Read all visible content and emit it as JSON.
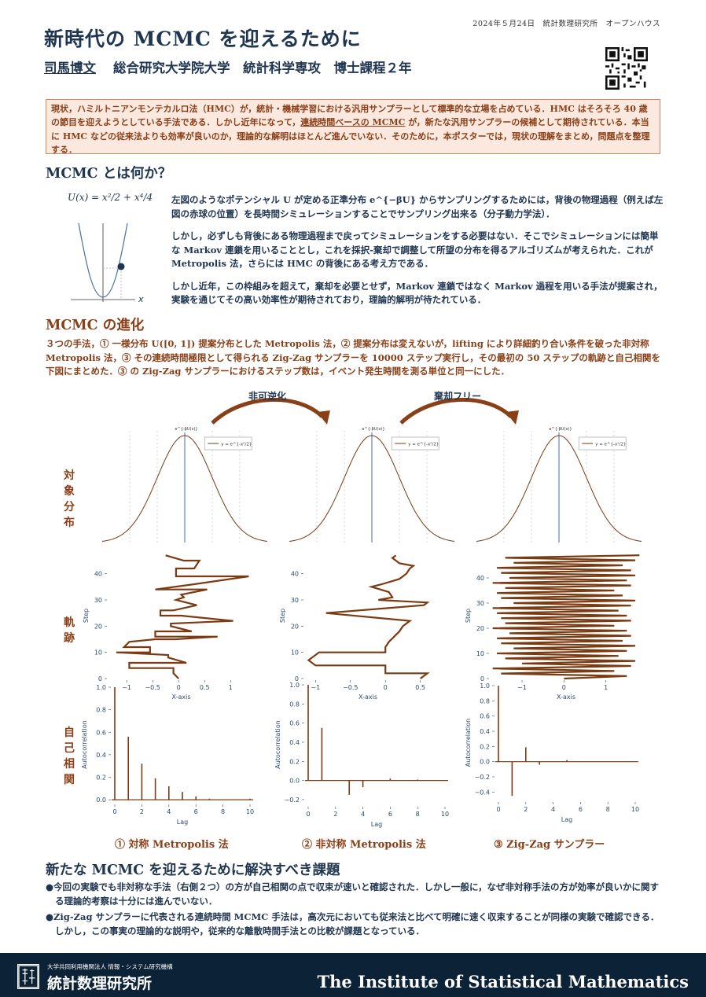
{
  "header": {
    "meta": "2024年５月24日　統計数理研究所　オープンハウス",
    "title": "新時代の MCMC を迎えるために",
    "author": "司馬博文",
    "affiliation": "総合研究大学院大学　統計科学専攻　博士課程２年"
  },
  "intro": {
    "part1": "現状，ハミルトニアンモンテカルロ法（HMC）が，統計・機械学習における汎用サンプラーとして標準的な立場を占めている．HMC はそろそろ 40 歳の節目を迎えようとしている手法である．しかし近年になって，",
    "highlight": "連続時間ベースの MCMC",
    "part2": " が，新たな汎用サンプラーの候補として期待されている．本当に HMC などの従来法よりも効率が良いのか，理論的な解明はほとんど進んでいない．そのために，本ポスターでは，現状の理解をまとめ，問題点を整理する．"
  },
  "section1": {
    "title": "MCMC とは何か？",
    "formula": "U(x) = x²/2 + x⁴/4",
    "axis_x": "x",
    "p1": "左図のようなポテンシャル U が定める正準分布 e^{−βU} からサンプリングするためには，背後の物理過程（例えば左図の赤球の位置）を長時間シミュレーションすることでサンプリング出来る（分子動力学法）．",
    "p2": "しかし，必ずしも背後にある物理過程まで戻ってシミュレーションをする必要はない．そこでシミュレーションには簡単な Markov 連鎖を用いることとし，これを採択-棄却で調整して所望の分布を得るアルゴリズムが考えられた．これが Metropolis 法，さらには HMC の背後にある考え方である．",
    "p3": "しかし近年，この枠組みを超えて，棄却を必要とせず，Markov 連鎖ではなく Markov 過程を用いる手法が提案され，実験を通じてその高い効率性が期待されており，理論的解明が待たれている．"
  },
  "section2": {
    "title": "MCMC の進化",
    "text": "３つの手法，① 一様分布 U([0, 1]) 提案分布とした Metropolis 法，② 提案分布は変えないが，lifting により詳細釣り合い条件を破った非対称 Metropolis 法，③ その連続時間極限として得られる Zig-Zag サンプラーを 10000 ステップ実行し，その最初の 50 ステップの軌跡と自己相関を下図にまとめた．③ の Zig-Zag サンプラーにおけるステップ数は，イベント発生時間を測る単位と同一にした．",
    "arrow1": "非可逆化",
    "arrow2": "棄却フリー",
    "row_labels": {
      "target": "対象分布",
      "trajectory": "軌跡",
      "acf": "自己相関"
    },
    "captions": [
      "① 対称 Metropolis 法",
      "② 非対称 Metropolis 法",
      "③ Zig-Zag サンプラー"
    ]
  },
  "section3": {
    "title": "新たな MCMC を迎えるために解決すべき課題",
    "items": [
      "●今回の実験でも非対称な手法（右側２つ）の方が自己相関の点で収束が速いと確認された．しかし一般に，なぜ非対称手法の方が効率が良いかに関する理論的考察は十分には進んでいない．",
      "●Zig-Zag サンプラーに代表される連続時間 MCMC 手法は，高次元においても従来法と比べて明確に速く収束することが同様の実験で確認できる．しかし，この事実の理論的な説明や，従来的な離散時間手法との比較が課題となっている．"
    ]
  },
  "footer": {
    "org": "大学共同利用機関法人 情報・システム研究機構",
    "name": "統計数理研究所",
    "english": "The Institute of Statistical Mathematics"
  },
  "colors": {
    "navy": "#1f3550",
    "brown": "#8a3f17",
    "line_brown": "#7a3b12",
    "blue_line": "#4a6fa5",
    "footer_bg": "#0c2236"
  },
  "chart_data": [
    {
      "type": "line",
      "panel": "target-1",
      "title": "e^{-βU(x)}",
      "legend": "y = e^{-x²/2}",
      "x": [
        -3,
        -2.5,
        -2,
        -1.5,
        -1,
        -0.5,
        0,
        0.5,
        1,
        1.5,
        2,
        2.5,
        3
      ],
      "y": [
        0.011,
        0.044,
        0.135,
        0.325,
        0.607,
        0.882,
        1.0,
        0.882,
        0.607,
        0.325,
        0.135,
        0.044,
        0.011
      ]
    },
    {
      "type": "line",
      "panel": "target-2",
      "title": "e^{-βU(x)}",
      "legend": "y = e^{-x²/2}",
      "x": [
        -3,
        -2.5,
        -2,
        -1.5,
        -1,
        -0.5,
        0,
        0.5,
        1,
        1.5,
        2,
        2.5,
        3
      ],
      "y": [
        0.011,
        0.044,
        0.135,
        0.325,
        0.607,
        0.882,
        1.0,
        0.882,
        0.607,
        0.325,
        0.135,
        0.044,
        0.011
      ]
    },
    {
      "type": "line",
      "panel": "target-3",
      "title": "e^{-βU(x)}",
      "legend": "y = e^{-x²/2}",
      "x": [
        -3,
        -2.5,
        -2,
        -1.5,
        -1,
        -0.5,
        0,
        0.5,
        1,
        1.5,
        2,
        2.5,
        3
      ],
      "y": [
        0.011,
        0.044,
        0.135,
        0.325,
        0.607,
        0.882,
        1.0,
        0.882,
        0.607,
        0.325,
        0.135,
        0.044,
        0.011
      ]
    },
    {
      "type": "line",
      "panel": "trajectory-1",
      "xlabel": "X-axis",
      "ylabel": "Step",
      "xlim": [
        -1.35,
        1.45
      ],
      "ylim": [
        0,
        48
      ],
      "xticks": [
        -1.0,
        -0.5,
        0.0,
        0.5,
        1.0
      ],
      "yticks": [
        0,
        10,
        20,
        30,
        40
      ],
      "x": [
        0.0,
        -0.1,
        -0.1,
        -0.95,
        -0.95,
        0.15,
        -0.2,
        -0.2,
        -1.2,
        -0.55,
        -0.55,
        -1.05,
        -0.95,
        -0.45,
        -0.05,
        0.75,
        -0.45,
        -0.45,
        0.25,
        -0.15,
        -0.15,
        1.05,
        0.05,
        -0.35,
        -0.35,
        -0.1,
        0.35,
        -0.05,
        0.1,
        0.05,
        0.55,
        -0.45,
        0.3,
        1.35,
        -0.05,
        -0.05,
        0.3,
        0.4,
        0.1,
        -0.25
      ],
      "y": [
        0,
        2,
        4,
        4,
        6,
        6,
        8,
        9,
        10,
        10,
        12,
        12,
        14,
        15,
        15,
        16,
        16,
        18,
        18,
        20,
        21,
        22,
        24,
        24,
        26,
        26,
        28,
        30,
        31,
        32,
        34,
        34,
        36,
        39,
        39,
        42,
        42,
        45,
        45,
        47
      ]
    },
    {
      "type": "line",
      "panel": "trajectory-2",
      "xlabel": "X-axis",
      "ylabel": "Step",
      "xlim": [
        -1.15,
        0.65
      ],
      "ylim": [
        0,
        48
      ],
      "xticks": [
        -1.0,
        -0.5,
        0.0,
        0.5
      ],
      "yticks": [
        0,
        10,
        20,
        30,
        40
      ],
      "x": [
        0.5,
        0.6,
        0.0,
        0.0,
        -1.0,
        -1.1,
        -0.95,
        0.0,
        0.0,
        0.05,
        0.2,
        0.25,
        0.35,
        -0.85,
        0.55,
        0.6,
        -0.1,
        0.1,
        0.05,
        -0.2,
        -0.05,
        0.2,
        0.3,
        0.35,
        0.4,
        0.2,
        0.1,
        0.15
      ],
      "y": [
        0,
        2,
        2,
        5,
        5,
        7,
        10,
        10,
        12,
        14,
        18,
        20,
        22,
        25,
        28,
        29,
        30,
        31,
        33,
        35,
        36,
        38,
        40,
        42,
        43,
        44,
        46,
        47
      ]
    },
    {
      "type": "line",
      "panel": "trajectory-3",
      "xlabel": "X-axis",
      "ylabel": "Step",
      "xlim": [
        -1.75,
        1.85
      ],
      "ylim": [
        0,
        50
      ],
      "xticks": [
        -1,
        0,
        1
      ],
      "yticks": [
        0,
        10,
        20,
        30,
        40
      ],
      "x": [
        0.0,
        1.5,
        -1.5,
        1.2,
        -1.7,
        1.6,
        -1.0,
        1.7,
        -1.4,
        1.3,
        -1.6,
        1.5,
        -1.2,
        1.7,
        -1.5,
        1.4,
        -1.6,
        1.6,
        -1.3,
        1.5,
        -1.7,
        1.2,
        -1.4,
        1.6,
        -1.5,
        1.5,
        -1.6,
        1.3,
        -1.7,
        1.6,
        -1.2,
        1.7,
        -1.5,
        1.4,
        -1.6,
        1.2,
        -1.4,
        1.6,
        -1.7,
        1.5,
        -1.3,
        1.7,
        -1.5,
        1.6,
        -1.6,
        1.4,
        -1.2,
        1.7,
        -1.4,
        1.8
      ],
      "y": [
        0,
        1,
        2,
        3,
        4,
        5,
        6,
        7,
        8,
        9,
        10,
        11,
        12,
        13,
        14,
        15,
        16,
        17,
        18,
        19,
        20,
        21,
        22,
        23,
        24,
        25,
        26,
        27,
        28,
        29,
        30,
        31,
        32,
        33,
        34,
        35,
        36,
        37,
        38,
        39,
        40,
        41,
        42,
        43,
        44,
        45,
        46,
        47,
        48,
        49
      ]
    },
    {
      "type": "bar",
      "panel": "acf-1",
      "xlabel": "Lag",
      "ylabel": "Autocorrelation",
      "xlim": [
        -0.5,
        10.5
      ],
      "ylim": [
        -0.02,
        1.0
      ],
      "xticks": [
        0,
        2,
        4,
        6,
        8,
        10
      ],
      "yticks": [
        0.0,
        0.2,
        0.4,
        0.6,
        0.8,
        1.0
      ],
      "lags": [
        0,
        1,
        2,
        3,
        4,
        5,
        6,
        7,
        8,
        9,
        10
      ],
      "values": [
        1.0,
        0.56,
        0.32,
        0.19,
        0.12,
        0.07,
        0.03,
        0.01,
        0.0,
        0.0,
        0.01
      ]
    },
    {
      "type": "bar",
      "panel": "acf-2",
      "xlabel": "Lag",
      "ylabel": "Autocorrelation",
      "xlim": [
        -0.5,
        10.5
      ],
      "ylim": [
        -0.25,
        1.0
      ],
      "xticks": [
        0,
        2,
        4,
        6,
        8,
        10
      ],
      "yticks": [
        -0.2,
        0.0,
        0.2,
        0.4,
        0.6,
        0.8,
        1.0
      ],
      "lags": [
        0,
        1,
        2,
        3,
        4,
        5,
        6,
        7,
        8,
        9,
        10
      ],
      "values": [
        1.0,
        0.55,
        0.0,
        -0.15,
        -0.07,
        0.0,
        0.02,
        0.0,
        0.01,
        0.0,
        0.0
      ]
    },
    {
      "type": "bar",
      "panel": "acf-3",
      "xlabel": "Lag",
      "ylabel": "Autocorrelation",
      "xlim": [
        -0.5,
        10.5
      ],
      "ylim": [
        -0.5,
        1.0
      ],
      "xticks": [
        0,
        2,
        4,
        6,
        8,
        10
      ],
      "yticks": [
        -0.4,
        -0.2,
        0.0,
        0.2,
        0.4,
        0.6,
        0.8,
        1.0
      ],
      "lags": [
        0,
        1,
        2,
        3,
        4,
        5,
        6,
        7,
        8,
        9,
        10
      ],
      "values": [
        1.0,
        -0.45,
        0.19,
        -0.04,
        0.0,
        0.02,
        0.0,
        0.0,
        0.0,
        0.0,
        0.0
      ]
    }
  ]
}
